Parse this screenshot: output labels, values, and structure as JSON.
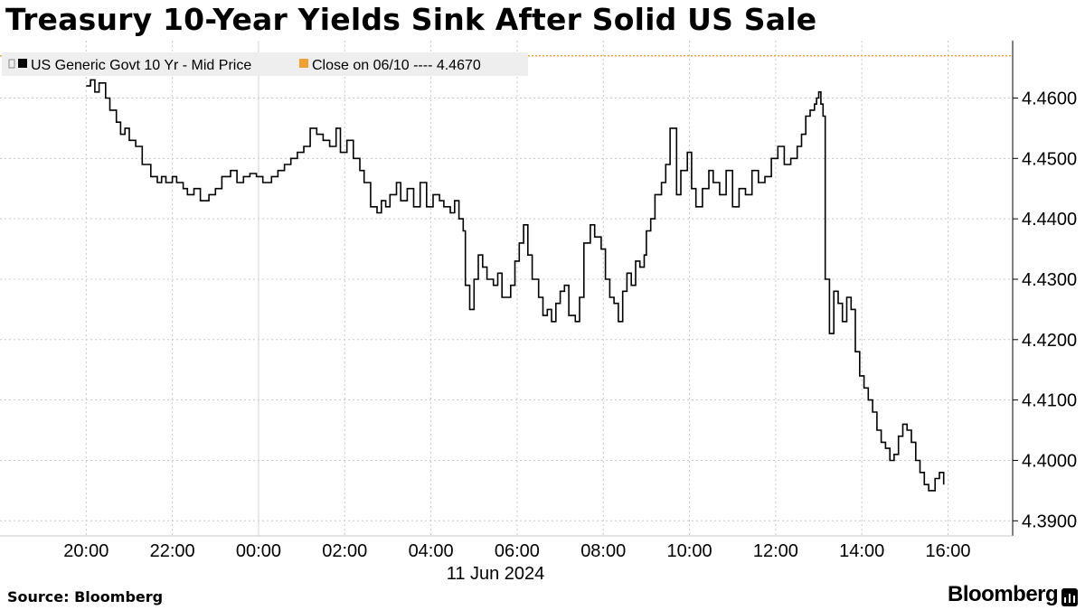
{
  "title": "Treasury 10-Year Yields Sink After Solid US Sale",
  "source": "Source: Bloomberg",
  "brand": "Bloomberg",
  "colors": {
    "series": "#000000",
    "close_line": "#f0a030",
    "grid": "#c8c8c8"
  },
  "chart_data": {
    "type": "line",
    "title": "Treasury 10-Year Yields Sink After Solid US Sale",
    "xlabel": "11 Jun 2024",
    "ylabel": "",
    "x_unit": "hours since 20:00 on 10 Jun 2024",
    "xlim": [
      -2.0,
      21.5
    ],
    "ylim": [
      4.3875,
      4.4695
    ],
    "y_ticks": [
      "4.3900",
      "4.4000",
      "4.4100",
      "4.4200",
      "4.4300",
      "4.4400",
      "4.4500",
      "4.4600"
    ],
    "x_ticks": [
      {
        "x": 0,
        "label": "20:00"
      },
      {
        "x": 2,
        "label": "22:00"
      },
      {
        "x": 4,
        "label": "00:00"
      },
      {
        "x": 6,
        "label": "02:00"
      },
      {
        "x": 8,
        "label": "04:00"
      },
      {
        "x": 10,
        "label": "06:00"
      },
      {
        "x": 12,
        "label": "08:00"
      },
      {
        "x": 14,
        "label": "10:00"
      },
      {
        "x": 16,
        "label": "12:00"
      },
      {
        "x": 18,
        "label": "14:00"
      },
      {
        "x": 20,
        "label": "16:00"
      }
    ],
    "grid": true,
    "legend_placement": "top-left",
    "series": [
      {
        "name": "US Generic Govt 10 Yr - Mid Price",
        "step": true,
        "x": [
          0.0,
          0.1,
          0.2,
          0.3,
          0.45,
          0.55,
          0.7,
          0.8,
          0.9,
          1.0,
          1.15,
          1.3,
          1.5,
          1.65,
          1.75,
          1.85,
          2.0,
          2.1,
          2.25,
          2.35,
          2.5,
          2.65,
          2.85,
          3.0,
          3.15,
          3.35,
          3.5,
          3.65,
          3.8,
          3.95,
          4.1,
          4.3,
          4.45,
          4.6,
          4.75,
          4.9,
          5.05,
          5.2,
          5.35,
          5.5,
          5.65,
          5.8,
          5.9,
          6.05,
          6.2,
          6.35,
          6.45,
          6.6,
          6.75,
          6.85,
          6.95,
          7.05,
          7.2,
          7.3,
          7.45,
          7.6,
          7.75,
          7.9,
          8.05,
          8.2,
          8.3,
          8.45,
          8.55,
          8.65,
          8.75,
          8.8,
          8.9,
          9.0,
          9.1,
          9.2,
          9.3,
          9.45,
          9.55,
          9.65,
          9.75,
          9.85,
          9.95,
          10.05,
          10.15,
          10.25,
          10.35,
          10.5,
          10.6,
          10.7,
          10.8,
          10.9,
          11.0,
          11.1,
          11.2,
          11.35,
          11.45,
          11.55,
          11.7,
          11.8,
          11.95,
          12.05,
          12.15,
          12.25,
          12.35,
          12.45,
          12.55,
          12.65,
          12.75,
          12.85,
          12.95,
          13.0,
          13.1,
          13.2,
          13.35,
          13.45,
          13.55,
          13.7,
          13.8,
          13.95,
          14.05,
          14.15,
          14.3,
          14.45,
          14.55,
          14.7,
          14.85,
          15.0,
          15.15,
          15.3,
          15.45,
          15.6,
          15.75,
          15.9,
          16.05,
          16.2,
          16.35,
          16.5,
          16.6,
          16.7,
          16.8,
          16.9,
          16.95,
          17.0,
          17.05,
          17.1,
          17.15,
          17.25,
          17.35,
          17.45,
          17.55,
          17.65,
          17.75,
          17.85,
          17.95,
          18.05,
          18.15,
          18.25,
          18.35,
          18.45,
          18.55,
          18.65,
          18.75,
          18.85,
          18.95,
          19.05,
          19.15,
          19.25,
          19.35,
          19.45,
          19.55,
          19.7,
          19.8,
          19.9
        ],
        "values": [
          4.462,
          4.463,
          4.461,
          4.4625,
          4.46,
          4.458,
          4.456,
          4.454,
          4.455,
          4.453,
          4.452,
          4.449,
          4.447,
          4.446,
          4.447,
          4.446,
          4.447,
          4.446,
          4.445,
          4.444,
          4.445,
          4.443,
          4.444,
          4.445,
          4.447,
          4.448,
          4.446,
          4.447,
          4.4475,
          4.447,
          4.446,
          4.447,
          4.448,
          4.449,
          4.45,
          4.451,
          4.452,
          4.455,
          4.454,
          4.453,
          4.452,
          4.455,
          4.451,
          4.453,
          4.45,
          4.448,
          4.446,
          4.442,
          4.441,
          4.443,
          4.442,
          4.444,
          4.446,
          4.443,
          4.445,
          4.442,
          4.446,
          4.442,
          4.444,
          4.443,
          4.442,
          4.441,
          4.443,
          4.44,
          4.438,
          4.429,
          4.425,
          4.43,
          4.434,
          4.432,
          4.43,
          4.429,
          4.431,
          4.427,
          4.427,
          4.429,
          4.433,
          4.436,
          4.439,
          4.434,
          4.43,
          4.427,
          4.424,
          4.425,
          4.423,
          4.426,
          4.428,
          4.429,
          4.424,
          4.423,
          4.427,
          4.436,
          4.439,
          4.437,
          4.435,
          4.43,
          4.427,
          4.426,
          4.423,
          4.428,
          4.431,
          4.429,
          4.433,
          4.432,
          4.434,
          4.438,
          4.44,
          4.444,
          4.446,
          4.449,
          4.455,
          4.444,
          4.448,
          4.451,
          4.445,
          4.442,
          4.445,
          4.448,
          4.446,
          4.444,
          4.448,
          4.442,
          4.445,
          4.444,
          4.448,
          4.446,
          4.447,
          4.45,
          4.452,
          4.449,
          4.45,
          4.452,
          4.454,
          4.457,
          4.458,
          4.459,
          4.46,
          4.461,
          4.459,
          4.457,
          4.43,
          4.421,
          4.428,
          4.426,
          4.423,
          4.427,
          4.425,
          4.418,
          4.414,
          4.412,
          4.41,
          4.408,
          4.405,
          4.403,
          4.402,
          4.4,
          4.401,
          4.404,
          4.406,
          4.405,
          4.403,
          4.4,
          4.398,
          4.396,
          4.395,
          4.397,
          4.398,
          4.396
        ]
      },
      {
        "name": "Close on 06/10 ---- 4.4670",
        "step": false,
        "x": [
          -2.0,
          21.5
        ],
        "values": [
          4.467,
          4.467
        ]
      }
    ],
    "annotations": []
  }
}
